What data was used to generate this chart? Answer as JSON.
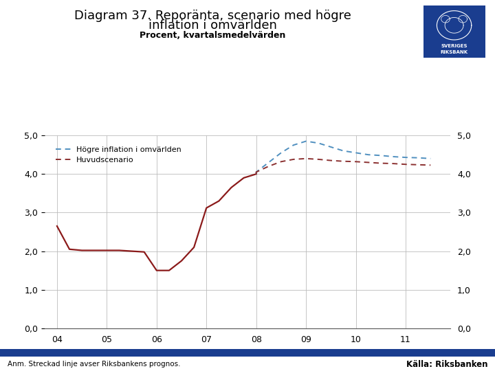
{
  "title_line1": "Diagram 37. Reporänta, scenario med högre",
  "title_line2": "inflation i omvärlden",
  "subtitle": "Procent, kvartalsmedelvärden",
  "footnote": "Anm. Streckad linje avser Riksbankens prognos.",
  "source": "Källa: Riksbanken",
  "ylim": [
    0.0,
    5.0
  ],
  "yticks": [
    0.0,
    1.0,
    2.0,
    3.0,
    4.0,
    5.0
  ],
  "x_labels": [
    "04",
    "05",
    "06",
    "07",
    "08",
    "09",
    "10",
    "11"
  ],
  "background_color": "#ffffff",
  "plot_bg_color": "#ffffff",
  "grid_color": "#bbbbbb",
  "footer_bar_color": "#1a3d8f",
  "solid_color": "#8b1a1a",
  "hogre_color": "#4f8fbf",
  "huvud_color": "#8b3030",
  "solid_x": [
    2004.0,
    2004.25,
    2004.5,
    2004.75,
    2005.0,
    2005.25,
    2005.5,
    2005.75,
    2006.0,
    2006.25,
    2006.5,
    2006.75,
    2007.0,
    2007.25,
    2007.5,
    2007.75,
    2008.0
  ],
  "solid_y": [
    2.65,
    2.05,
    2.02,
    2.02,
    2.02,
    2.02,
    2.0,
    1.98,
    1.5,
    1.5,
    1.75,
    2.1,
    3.12,
    3.3,
    3.65,
    3.9,
    4.0
  ],
  "hogre_x": [
    2008.0,
    2008.25,
    2008.5,
    2008.75,
    2009.0,
    2009.25,
    2009.5,
    2009.75,
    2010.0,
    2010.25,
    2010.5,
    2010.75,
    2011.0,
    2011.25,
    2011.5
  ],
  "hogre_y": [
    4.05,
    4.3,
    4.55,
    4.75,
    4.85,
    4.8,
    4.7,
    4.6,
    4.55,
    4.5,
    4.48,
    4.45,
    4.43,
    4.42,
    4.4
  ],
  "huvud_x": [
    2008.0,
    2008.25,
    2008.5,
    2008.75,
    2009.0,
    2009.25,
    2009.5,
    2009.75,
    2010.0,
    2010.25,
    2010.5,
    2010.75,
    2011.0,
    2011.25,
    2011.5
  ],
  "huvud_y": [
    4.05,
    4.2,
    4.32,
    4.38,
    4.4,
    4.38,
    4.35,
    4.33,
    4.32,
    4.3,
    4.28,
    4.27,
    4.25,
    4.24,
    4.23
  ],
  "title_fontsize": 13,
  "subtitle_fontsize": 9,
  "tick_fontsize": 9,
  "legend_fontsize": 8
}
